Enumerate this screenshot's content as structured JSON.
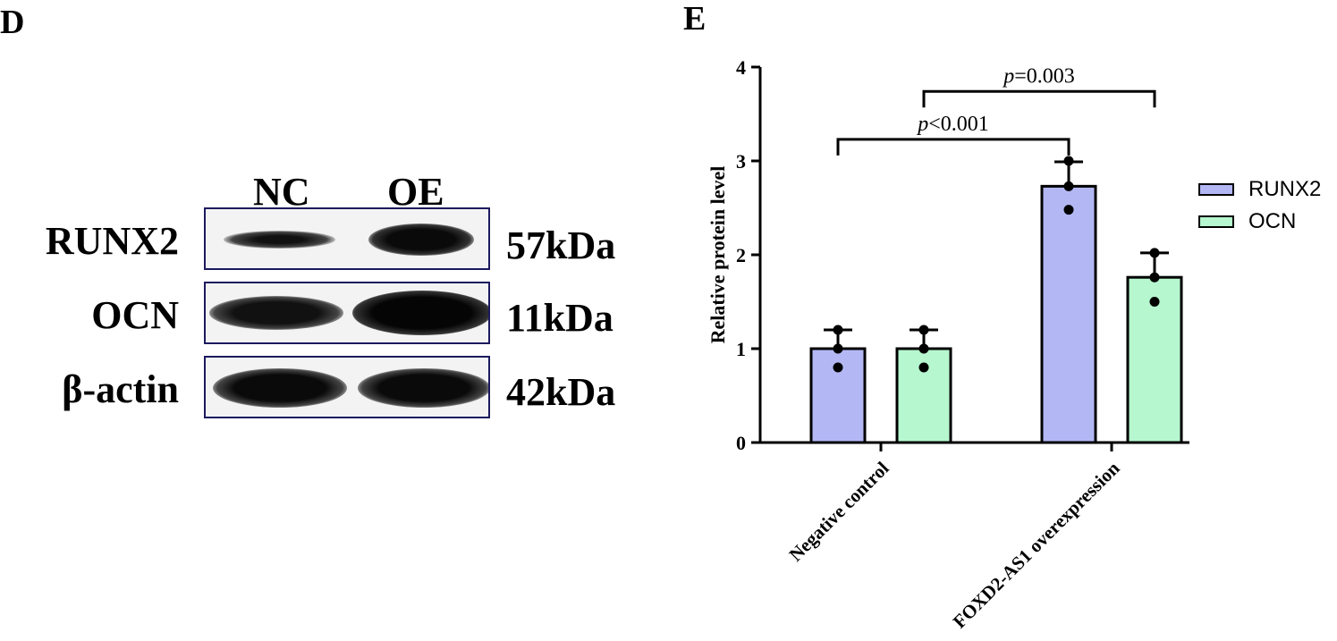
{
  "panels": {
    "d_label": "D",
    "e_label": "E"
  },
  "western_blot": {
    "lanes": [
      "NC",
      "OE"
    ],
    "rows": [
      {
        "protein": "RUNX2",
        "kda": "57kDa"
      },
      {
        "protein": "OCN",
        "kda": "11kDa"
      },
      {
        "protein": "β-actin",
        "kda": "42kDa"
      }
    ]
  },
  "chart_data": {
    "type": "bar",
    "title": "",
    "xlabel": "",
    "ylabel": "Relative protein level",
    "ylim": [
      0,
      4
    ],
    "yticks": [
      "0",
      "1",
      "2",
      "3",
      "4"
    ],
    "categories": [
      "Negative control",
      "FOXD2-AS1 overexpression"
    ],
    "series": [
      {
        "name": "RUNX2",
        "color": "#b3b8f5",
        "values": [
          1.0,
          2.73
        ],
        "errors": [
          0.2,
          0.26
        ],
        "points": [
          [
            1.2,
            1.0,
            0.8
          ],
          [
            3.0,
            2.73,
            2.48
          ]
        ]
      },
      {
        "name": "OCN",
        "color": "#b6f7cf",
        "values": [
          1.0,
          1.76
        ],
        "errors": [
          0.2,
          0.26
        ],
        "points": [
          [
            1.2,
            1.0,
            0.8
          ],
          [
            2.02,
            1.76,
            1.5
          ]
        ]
      }
    ],
    "annotations": [
      {
        "text_italic": "p",
        "text_rest": "<0.001"
      },
      {
        "text_italic": "p",
        "text_rest": "=0.003"
      }
    ],
    "legend": {
      "placement": "right"
    }
  }
}
